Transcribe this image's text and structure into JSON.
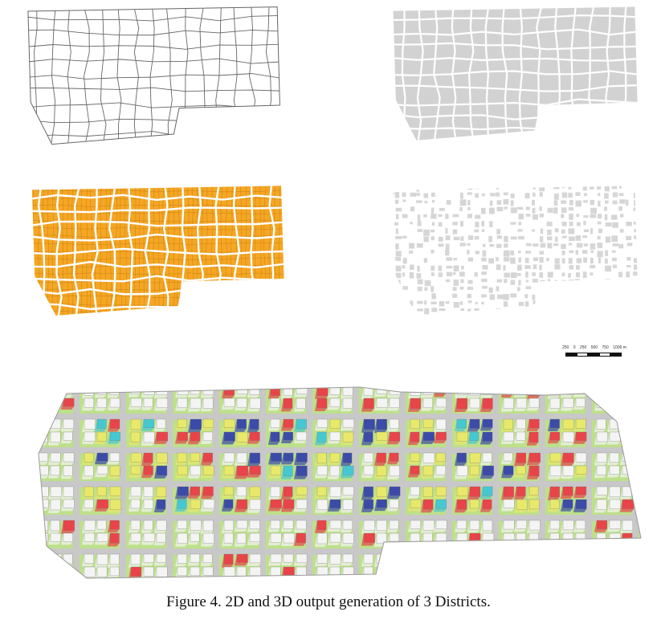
{
  "figure": {
    "caption": "Figure 4. 2D and 3D output generation of 3 Districts.",
    "panels": [
      {
        "name": "street-network",
        "fill": "#ffffff",
        "stroke": "#666666"
      },
      {
        "name": "blocks",
        "fill": "#d2d2d2",
        "stroke": "#ffffff"
      },
      {
        "name": "parcels",
        "fill": "#f5a623",
        "stroke": "#ffffff"
      },
      {
        "name": "building-footprints",
        "fill": "#d6d6d6",
        "stroke": "#ffffff"
      },
      {
        "name": "3d-districts",
        "colors": {
          "ground": "#bde08a",
          "road": "#c8c8c8",
          "white": "#f4f4f4",
          "red": "#e8444a",
          "yellow": "#e8e86a",
          "blue": "#3c4aa8",
          "cyan": "#46c8d2"
        }
      }
    ],
    "scalebar": {
      "ticks": [
        "250",
        "0",
        "250",
        "500",
        "750",
        "1000 m"
      ]
    }
  }
}
